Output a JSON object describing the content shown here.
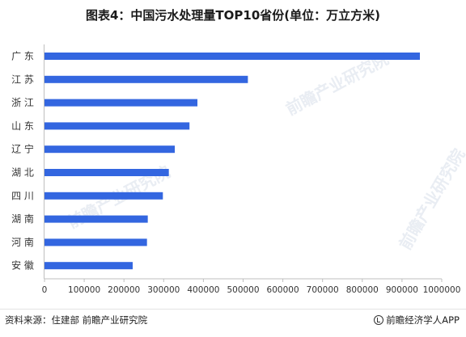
{
  "title": "图表4：中国污水处理量TOP10省份(单位：万立方米)",
  "footer": {
    "source": "资料来源：住建部 前瞻产业研究院",
    "brand": "前瞻经济学人APP",
    "brand_icon": "qianzhan-logo-icon"
  },
  "watermark": "前瞻产业研究院",
  "colors": {
    "bar": "#3366e0",
    "axis": "#bfbfbf",
    "text": "#333333"
  },
  "chart_data": {
    "type": "bar",
    "orientation": "horizontal",
    "categories": [
      "广东",
      "江苏",
      "浙江",
      "山东",
      "辽宁",
      "湖北",
      "四川",
      "湖南",
      "河南",
      "安徽"
    ],
    "category_labels": [
      "广 东",
      "江 苏",
      "浙 江",
      "山 东",
      "辽 宁",
      "湖 北",
      "四 川",
      "湖 南",
      "河 南",
      "安 徽"
    ],
    "values": [
      945000,
      512000,
      385000,
      365000,
      328000,
      313000,
      298000,
      260000,
      258000,
      222000
    ],
    "xlim": [
      0,
      1000000
    ],
    "xticks": [
      "0",
      "100000",
      "200000",
      "300000",
      "400000",
      "500000",
      "600000",
      "700000",
      "800000",
      "900000",
      "1000000"
    ],
    "xtick_values": [
      0,
      100000,
      200000,
      300000,
      400000,
      500000,
      600000,
      700000,
      800000,
      900000,
      1000000
    ],
    "grid": false,
    "legend": "none"
  }
}
